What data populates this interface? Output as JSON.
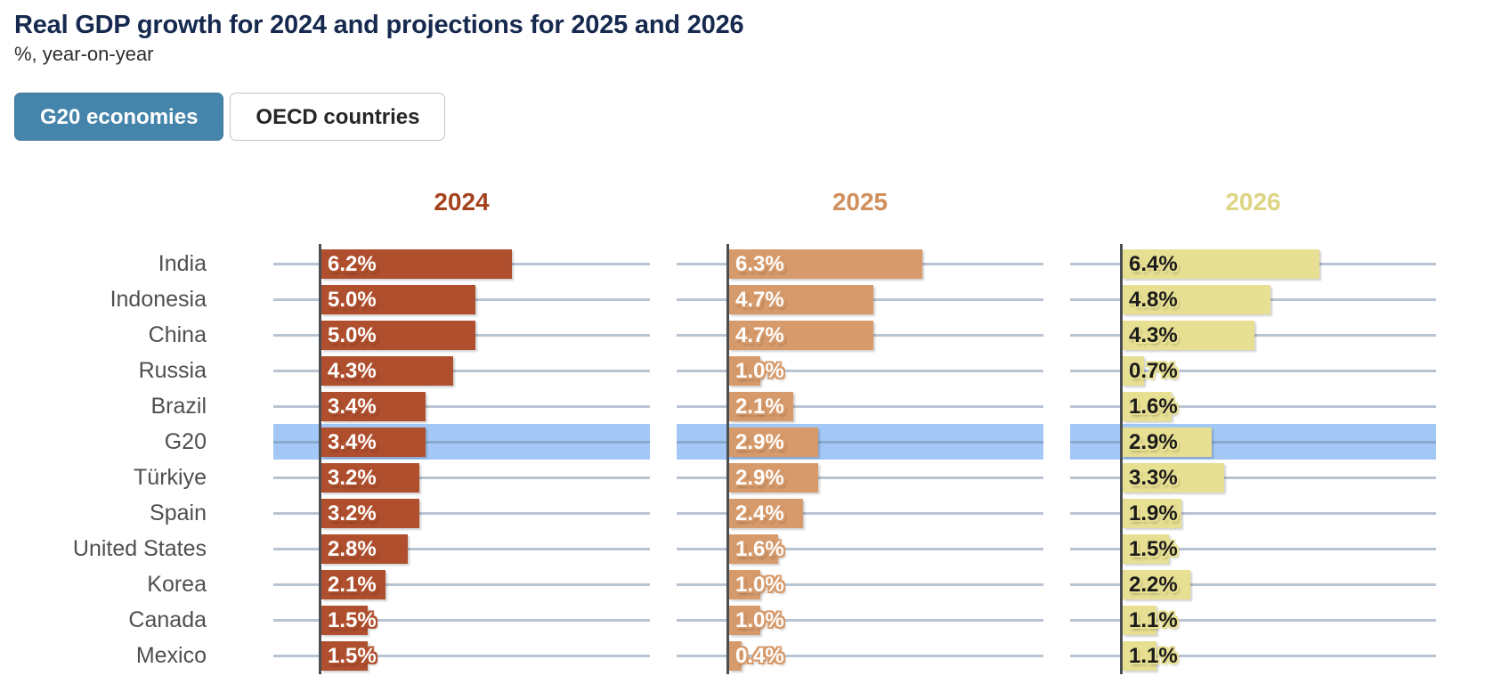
{
  "page": {
    "title": "Real GDP growth for 2024 and projections for 2025 and 2026",
    "subtitle": "%, year-on-year"
  },
  "toggle": {
    "options": [
      {
        "id": "g20-economies",
        "label": "G20 economies",
        "selected": true
      },
      {
        "id": "oecd-countries",
        "label": "OECD countries",
        "selected": false
      }
    ]
  },
  "chart_data": {
    "type": "bar",
    "orientation": "horizontal",
    "unit": "%",
    "title": "Real GDP growth for 2024 and projections for 2025 and 2026",
    "subtitle": "%, year-on-year",
    "categories": [
      "India",
      "Indonesia",
      "China",
      "Russia",
      "Brazil",
      "G20",
      "Türkiye",
      "Spain",
      "United States",
      "Korea",
      "Canada",
      "Mexico"
    ],
    "highlight_category": "G20",
    "highlight_color": "#a3c8f6",
    "series": [
      {
        "name": "2024",
        "color": "#af4f2e",
        "header_color": "#a5421f",
        "text_color": "#ffffff",
        "values": [
          6.2,
          5.0,
          5.0,
          4.3,
          3.4,
          3.4,
          3.2,
          3.2,
          2.8,
          2.1,
          1.5,
          1.5
        ]
      },
      {
        "name": "2025",
        "color": "#d69a6b",
        "header_color": "#d08f5c",
        "text_color": "#ffffff",
        "values": [
          6.3,
          4.7,
          4.7,
          1.0,
          2.1,
          2.9,
          2.9,
          2.4,
          1.6,
          1.0,
          1.0,
          0.4
        ]
      },
      {
        "name": "2026",
        "color": "#e7df92",
        "header_color": "#ddd584",
        "text_color": "#1b1b1b",
        "values": [
          6.4,
          4.8,
          4.3,
          0.7,
          1.6,
          2.9,
          3.3,
          1.9,
          1.5,
          2.2,
          1.1,
          1.1
        ]
      }
    ],
    "value_label_format": "one_decimal_percent",
    "xlim": [
      0,
      10.7
    ],
    "grid": true,
    "legend_position": "column-headers"
  },
  "styles": {
    "gridline_color": "#c3ccd6",
    "axis_color": "#4a4f54",
    "row_label_color": "#4f4f4f",
    "title_color": "#16294e",
    "toggle_selected_bg": "#4685ab"
  }
}
